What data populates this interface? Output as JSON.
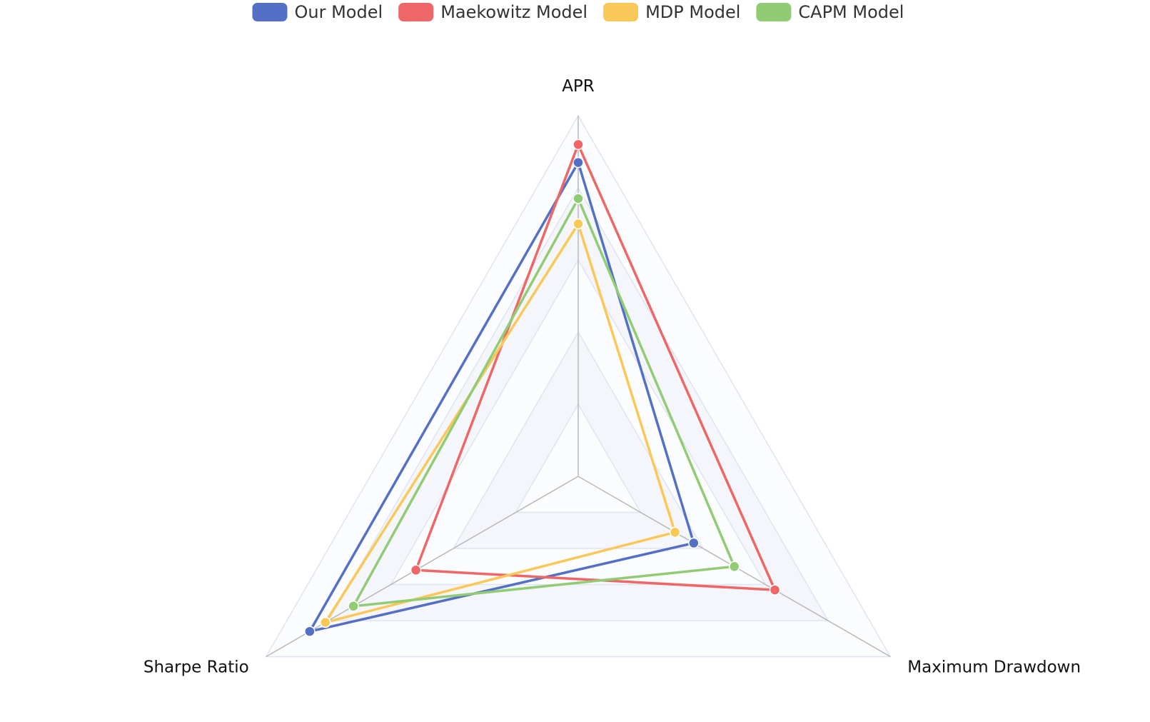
{
  "chart_data": {
    "type": "radar",
    "indicators": [
      {
        "name": "APR",
        "max": 1
      },
      {
        "name": "Maximum Drawdown",
        "max": 1
      },
      {
        "name": "Sharpe Ratio",
        "max": 1
      }
    ],
    "split_levels": [
      0.2,
      0.4,
      0.6,
      0.8,
      1.0
    ],
    "legend_position": "top-center",
    "series": [
      {
        "name": "Our Model",
        "color": "#5470c6",
        "values": [
          0.87,
          0.37,
          0.86
        ]
      },
      {
        "name": "Maekowitz Model",
        "color": "#ee6666",
        "values": [
          0.92,
          0.63,
          0.52
        ]
      },
      {
        "name": "MDP Model",
        "color": "#fac858",
        "values": [
          0.7,
          0.31,
          0.81
        ]
      },
      {
        "name": "CAPM Model",
        "color": "#91cc75",
        "values": [
          0.77,
          0.5,
          0.72
        ]
      }
    ]
  }
}
